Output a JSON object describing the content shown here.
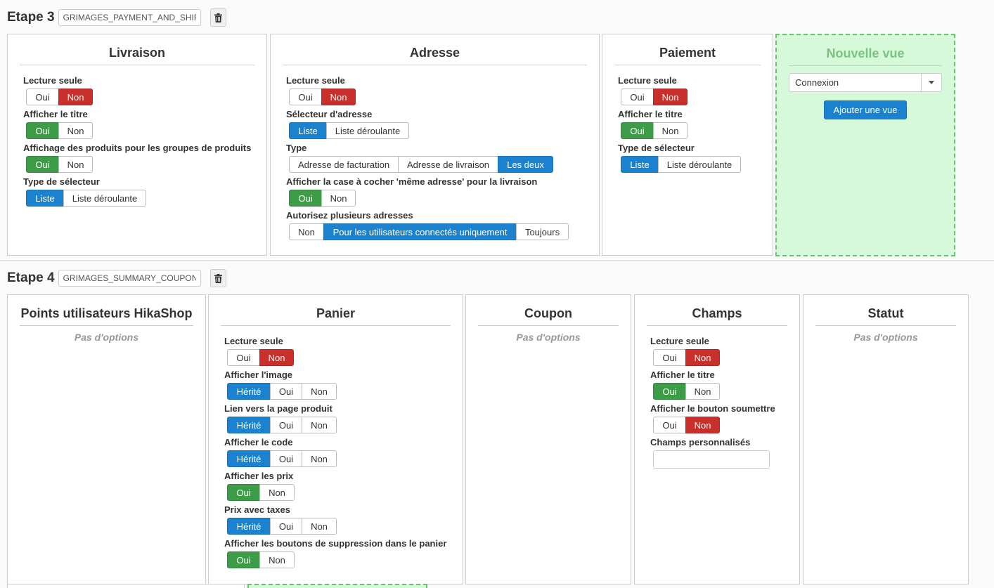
{
  "step3": {
    "title": "Etape 3",
    "name_value": "GRIMAGES_PAYMENT_AND_SHIPPING",
    "panels": {
      "livraison": {
        "title": "Livraison",
        "options": [
          {
            "label": "Lecture seule",
            "buttons": [
              "Oui",
              "Non"
            ]
          },
          {
            "label": "Afficher le titre",
            "buttons": [
              "Oui",
              "Non"
            ]
          },
          {
            "label": "Affichage des produits pour les groupes de produits",
            "buttons": [
              "Oui",
              "Non"
            ]
          },
          {
            "label": "Type de sélecteur",
            "buttons": [
              "Liste",
              "Liste déroulante"
            ]
          }
        ]
      },
      "adresse": {
        "title": "Adresse",
        "options": [
          {
            "label": "Lecture seule",
            "buttons": [
              "Oui",
              "Non"
            ]
          },
          {
            "label": "Sélecteur d'adresse",
            "buttons": [
              "Liste",
              "Liste déroulante"
            ]
          },
          {
            "label": "Type",
            "buttons": [
              "Adresse de facturation",
              "Adresse de livraison",
              "Les deux"
            ]
          },
          {
            "label": "Afficher la case à cocher 'même adresse' pour la livraison",
            "buttons": [
              "Oui",
              "Non"
            ]
          },
          {
            "label": "Autorisez plusieurs adresses",
            "buttons": [
              "Non",
              "Pour les utilisateurs connectés uniquement",
              "Toujours"
            ]
          }
        ]
      },
      "paiement": {
        "title": "Paiement",
        "options": [
          {
            "label": "Lecture seule",
            "buttons": [
              "Oui",
              "Non"
            ]
          },
          {
            "label": "Afficher le titre",
            "buttons": [
              "Oui",
              "Non"
            ]
          },
          {
            "label": "Type de sélecteur",
            "buttons": [
              "Liste",
              "Liste déroulante"
            ]
          }
        ]
      },
      "new_view": {
        "title": "Nouvelle vue",
        "select_value": "Connexion",
        "add_label": "Ajouter une vue"
      }
    }
  },
  "step4": {
    "title": "Etape 4",
    "name_value": "GRIMAGES_SUMMARY_COUPON",
    "panels": {
      "points": {
        "title": "Points utilisateurs HikaShop",
        "empty": "Pas d'options"
      },
      "panier": {
        "title": "Panier",
        "options": [
          {
            "label": "Lecture seule",
            "buttons": [
              "Oui",
              "Non"
            ]
          },
          {
            "label": "Afficher l'image",
            "buttons": [
              "Hérité",
              "Oui",
              "Non"
            ]
          },
          {
            "label": "Lien vers la page produit",
            "buttons": [
              "Hérité",
              "Oui",
              "Non"
            ]
          },
          {
            "label": "Afficher le code",
            "buttons": [
              "Hérité",
              "Oui",
              "Non"
            ]
          },
          {
            "label": "Afficher les prix",
            "buttons": [
              "Oui",
              "Non"
            ]
          },
          {
            "label": "Prix avec taxes",
            "buttons": [
              "Hérité",
              "Oui",
              "Non"
            ]
          },
          {
            "label": "Afficher les boutons de suppression dans le panier",
            "buttons": [
              "Oui",
              "Non"
            ]
          }
        ]
      },
      "coupon": {
        "title": "Coupon",
        "empty": "Pas d'options"
      },
      "champs": {
        "title": "Champs",
        "options": [
          {
            "label": "Lecture seule",
            "buttons": [
              "Oui",
              "Non"
            ]
          },
          {
            "label": "Afficher le titre",
            "buttons": [
              "Oui",
              "Non"
            ]
          },
          {
            "label": "Afficher le bouton soumettre",
            "buttons": [
              "Oui",
              "Non"
            ]
          },
          {
            "label": "Champs personnalisés"
          }
        ]
      },
      "statut": {
        "title": "Statut",
        "empty": "Pas d'options"
      }
    }
  },
  "colors": {
    "active_red": "#c9302c",
    "active_green": "#3c9c48",
    "active_blue": "#1b82d0",
    "new_view_bg": "#d6fad9"
  }
}
